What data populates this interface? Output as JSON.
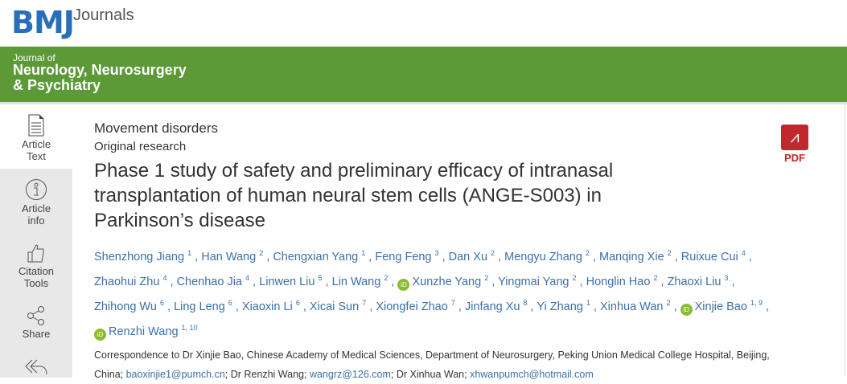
{
  "header": {
    "logo": "BMJ",
    "logo_suffix": "Journals"
  },
  "banner": {
    "journal_of": "Journal of",
    "journal_name_line1": "Neurology, Neurosurgery",
    "journal_name_line2": "& Psychiatry",
    "color": "#5b9a36"
  },
  "sidebar": {
    "items": [
      {
        "label1": "Article",
        "label2": "Text",
        "icon": "document-icon"
      },
      {
        "label1": "Article",
        "label2": "info",
        "icon": "info-icon"
      },
      {
        "label1": "Citation",
        "label2": "Tools",
        "icon": "thumbs-up-icon"
      },
      {
        "label1": "Share",
        "label2": "",
        "icon": "share-icon"
      },
      {
        "icon": "reply-all-icon"
      }
    ]
  },
  "article": {
    "section": "Movement disorders",
    "type": "Original research",
    "title": "Phase 1 study of safety and preliminary efficacy of intranasal transplantation of human neural stem cells (ANGE-S003) in Parkinson’s disease",
    "authors": [
      {
        "name": "Shenzhong Jiang",
        "aff": "1"
      },
      {
        "name": "Han Wang",
        "aff": "2"
      },
      {
        "name": "Chengxian Yang",
        "aff": "1"
      },
      {
        "name": "Feng Feng",
        "aff": "3"
      },
      {
        "name": "Dan Xu",
        "aff": "2"
      },
      {
        "name": "Mengyu Zhang",
        "aff": "2"
      },
      {
        "name": "Manqing Xie",
        "aff": "2"
      },
      {
        "name": "Ruixue Cui",
        "aff": "4"
      },
      {
        "name": "Zhaohui Zhu",
        "aff": "4"
      },
      {
        "name": "Chenhao Jia",
        "aff": "4"
      },
      {
        "name": "Linwen Liu",
        "aff": "5"
      },
      {
        "name": "Lin Wang",
        "aff": "2"
      },
      {
        "name": "Xunzhe Yang",
        "aff": "2",
        "orcid": true
      },
      {
        "name": "Yingmai Yang",
        "aff": "2"
      },
      {
        "name": "Honglin Hao",
        "aff": "2"
      },
      {
        "name": "Zhaoxi Liu",
        "aff": "3"
      },
      {
        "name": "Zhihong Wu",
        "aff": "6"
      },
      {
        "name": "Ling Leng",
        "aff": "6"
      },
      {
        "name": "Xiaoxin Li",
        "aff": "6"
      },
      {
        "name": "Xicai Sun",
        "aff": "7"
      },
      {
        "name": "Xiongfei Zhao",
        "aff": "7"
      },
      {
        "name": "Jinfang Xu",
        "aff": "8"
      },
      {
        "name": "Yi Zhang",
        "aff": "1"
      },
      {
        "name": "Xinhua Wan",
        "aff": "2"
      },
      {
        "name": "Xinjie Bao",
        "aff": "1, 9",
        "orcid": true
      },
      {
        "name": "Renzhi Wang",
        "aff": "1, 10",
        "orcid": true
      }
    ],
    "correspondence": {
      "prefix": "Correspondence to Dr Xinjie Bao, Chinese Academy of Medical Sciences, Department of Neurosurgery, Peking Union Medical College Hospital, Beijing, China; ",
      "email1": "baoxinjie1@pumch.cn",
      "mid1": "; Dr Renzhi Wang; ",
      "email2": "wangrz@126.com",
      "mid2": "; Dr Xinhua Wan; ",
      "email3": "xhwanpumch@hotmail.com"
    }
  },
  "pdf": {
    "label": "PDF",
    "icon": "adobe-pdf-icon",
    "color": "#c0282d"
  }
}
